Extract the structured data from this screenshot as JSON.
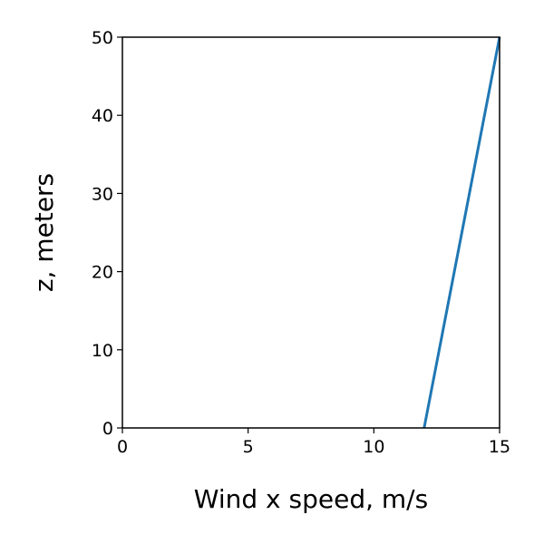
{
  "chart_data": {
    "type": "line",
    "title": "",
    "xlabel": "Wind x speed, m/s",
    "ylabel": "z, meters",
    "xlim": [
      0,
      15
    ],
    "ylim": [
      0,
      50
    ],
    "xticks": [
      "0",
      "5",
      "10",
      "15"
    ],
    "yticks": [
      "0",
      "10",
      "20",
      "30",
      "40",
      "50"
    ],
    "grid": false,
    "series": [
      {
        "color": "#1f77b4",
        "x": [
          12,
          15
        ],
        "y": [
          0,
          50
        ]
      }
    ]
  }
}
